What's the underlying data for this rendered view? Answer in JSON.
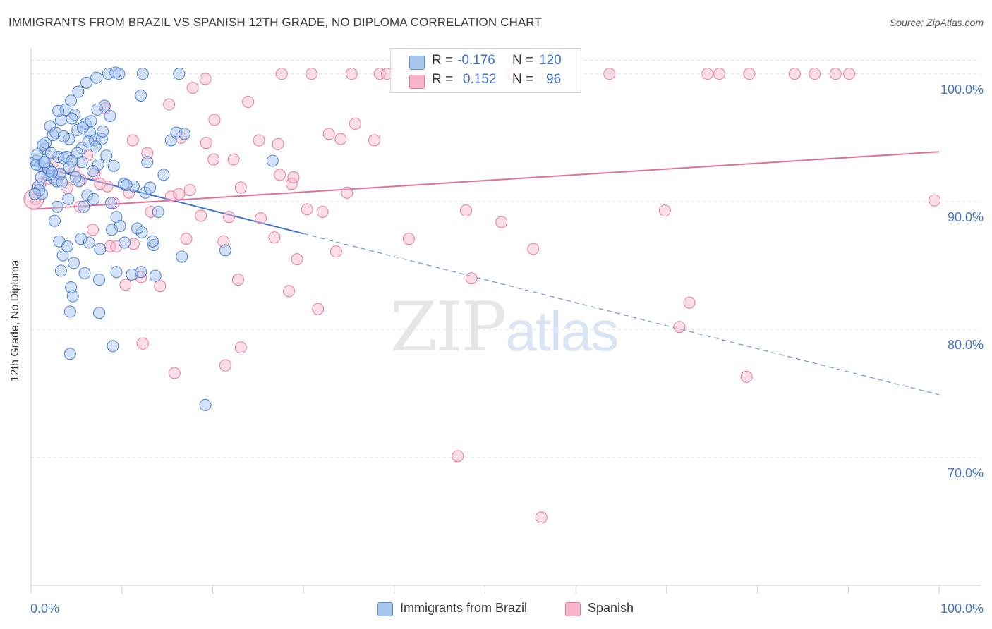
{
  "title": "IMMIGRANTS FROM BRAZIL VS SPANISH 12TH GRADE, NO DIPLOMA CORRELATION CHART",
  "source": "Source: ZipAtlas.com",
  "watermark": {
    "zip": "ZIP",
    "atlas": "atlas"
  },
  "legend": {
    "rows": [
      {
        "r_label": "R =",
        "r_value": "-0.176",
        "n_label": "N =",
        "n_value": "120",
        "color": "#a9c6ef"
      },
      {
        "r_label": "R =",
        "r_value": "0.152",
        "n_label": "N =",
        "n_value": "96",
        "color": "#f7b6c8"
      }
    ]
  },
  "bottom_legend": [
    {
      "label": "Immigrants from Brazil",
      "color": "#a9c6ef"
    },
    {
      "label": "Spanish",
      "color": "#f7b6c8"
    }
  ],
  "colors": {
    "blue": "#5b8fd6",
    "blue_fill": "#a9c6ef",
    "pink": "#e8789c",
    "pink_fill": "#f7b6c8",
    "grid": "#e4e4e4",
    "tick_text": "#4477c8"
  },
  "chart_data": {
    "type": "scatter",
    "title": "IMMIGRANTS FROM BRAZIL VS SPANISH 12TH GRADE, NO DIPLOMA CORRELATION CHART",
    "xlabel": "",
    "ylabel": "12th Grade, No Diploma",
    "xlim": [
      0,
      100
    ],
    "ylim": [
      60,
      101.8
    ],
    "x_tick_labels": [
      "0.0%",
      "100.0%"
    ],
    "y_ticks": [
      70,
      80,
      90,
      100
    ],
    "y_tick_labels": [
      "70.0%",
      "80.0%",
      "90.0%",
      "100.0%"
    ],
    "grid": true,
    "series": [
      {
        "name": "Immigrants from Brazil",
        "r": -0.176,
        "n": 120,
        "trend": {
          "x0": 0,
          "y0": 92.9,
          "x1": 100,
          "y1": 74.9,
          "solid_until_x": 30
        },
        "points": [
          [
            0.5,
            93.2
          ],
          [
            1,
            92.8
          ],
          [
            1.5,
            94.1
          ],
          [
            2,
            92.4
          ],
          [
            2.5,
            91.8
          ],
          [
            3,
            93.5
          ],
          [
            0.8,
            91.2
          ],
          [
            1.2,
            90.6
          ],
          [
            1.8,
            92.1
          ],
          [
            2.2,
            93.8
          ],
          [
            0.6,
            92.9
          ],
          [
            1.4,
            93.1
          ],
          [
            2.8,
            91.6
          ],
          [
            3.2,
            92.2
          ],
          [
            0.9,
            90.9
          ],
          [
            1.6,
            94.6
          ],
          [
            2.4,
            95.2
          ],
          [
            3.6,
            93.4
          ],
          [
            4.2,
            94.9
          ],
          [
            5.1,
            95.6
          ],
          [
            6,
            96.1
          ],
          [
            7.3,
            97.2
          ],
          [
            8.1,
            97.5
          ],
          [
            3.3,
            96.4
          ],
          [
            4.8,
            96.8
          ],
          [
            5.6,
            94.2
          ],
          [
            6.5,
            95.4
          ],
          [
            7,
            94.8
          ],
          [
            7.8,
            94.9
          ],
          [
            3.8,
            97.2
          ],
          [
            4.4,
            97.9
          ],
          [
            5.2,
            98.6
          ],
          [
            6.1,
            99.3
          ],
          [
            7.2,
            99.7
          ],
          [
            8.5,
            100
          ],
          [
            9.7,
            100
          ],
          [
            12.3,
            100
          ],
          [
            16.3,
            100
          ],
          [
            12.1,
            98.3
          ],
          [
            4.1,
            90.2
          ],
          [
            5.3,
            91.6
          ],
          [
            6.2,
            90.5
          ],
          [
            7.4,
            92.9
          ],
          [
            8.3,
            93.6
          ],
          [
            9.1,
            92.8
          ],
          [
            10.2,
            91.4
          ],
          [
            11.3,
            91.2
          ],
          [
            12.6,
            90.7
          ],
          [
            13.1,
            91.1
          ],
          [
            14.6,
            92.1
          ],
          [
            15.4,
            94.8
          ],
          [
            16,
            95.4
          ],
          [
            2.6,
            88.5
          ],
          [
            3.1,
            86.9
          ],
          [
            3.5,
            85.8
          ],
          [
            4,
            86.5
          ],
          [
            4.7,
            85.2
          ],
          [
            5.5,
            87.1
          ],
          [
            6.4,
            86.8
          ],
          [
            7.6,
            86.3
          ],
          [
            8.9,
            87.8
          ],
          [
            10.3,
            86.8
          ],
          [
            12.2,
            87.6
          ],
          [
            13.5,
            86.6
          ],
          [
            3.3,
            84.6
          ],
          [
            4.4,
            83.3
          ],
          [
            5.9,
            84.4
          ],
          [
            7.5,
            83.9
          ],
          [
            9.4,
            84.5
          ],
          [
            11.1,
            84.3
          ],
          [
            12.1,
            84.5
          ],
          [
            13.7,
            84.2
          ],
          [
            16.6,
            85.7
          ],
          [
            21.4,
            86.2
          ],
          [
            26.6,
            93.2
          ],
          [
            4.3,
            81.4
          ],
          [
            4.6,
            82.6
          ],
          [
            7.5,
            81.3
          ],
          [
            9,
            78.7
          ],
          [
            4.3,
            78.1
          ],
          [
            19.2,
            74.1
          ],
          [
            14,
            89.2
          ],
          [
            5.8,
            89.6
          ],
          [
            6.9,
            90.2
          ],
          [
            8.8,
            89.9
          ],
          [
            9.4,
            88.8
          ],
          [
            11.7,
            87.9
          ],
          [
            2.1,
            95.9
          ],
          [
            3,
            97.1
          ],
          [
            6.6,
            96.3
          ],
          [
            7.9,
            95.5
          ],
          [
            8.7,
            96.7
          ],
          [
            10.5,
            91.3
          ],
          [
            5.1,
            93.8
          ],
          [
            5.6,
            93.1
          ],
          [
            6.8,
            92.4
          ],
          [
            4.9,
            91.9
          ],
          [
            3.9,
            93.5
          ],
          [
            1.3,
            94.4
          ],
          [
            2.7,
            95.4
          ],
          [
            3.6,
            95.1
          ],
          [
            4.5,
            96.5
          ],
          [
            1.9,
            92.6
          ],
          [
            1.1,
            91.9
          ],
          [
            0.4,
            90.6
          ],
          [
            0.7,
            93.7
          ],
          [
            1.5,
            93.1
          ],
          [
            2.3,
            92.3
          ],
          [
            3.4,
            91.5
          ],
          [
            4.2,
            92.7
          ],
          [
            5.7,
            95.8
          ],
          [
            6.3,
            94.7
          ],
          [
            7.1,
            94.3
          ],
          [
            9.3,
            100.1
          ],
          [
            13.4,
            86.9
          ],
          [
            9.8,
            88.1
          ],
          [
            12.8,
            93.1
          ],
          [
            16.9,
            95.3
          ],
          [
            4.5,
            93.2
          ],
          [
            2.9,
            89.6
          ]
        ]
      },
      {
        "name": "Spanish",
        "r": 0.152,
        "n": 96,
        "trend": {
          "x0": 0,
          "y0": 89.4,
          "x1": 100,
          "y1": 93.9
        },
        "points": [
          [
            0.5,
            90.2
          ],
          [
            1,
            91.4
          ],
          [
            1.5,
            92.3
          ],
          [
            2,
            91.8
          ],
          [
            2.5,
            93.1
          ],
          [
            3.2,
            92.1
          ],
          [
            4,
            91.1
          ],
          [
            4.8,
            92.4
          ],
          [
            5.5,
            91.7
          ],
          [
            6.2,
            93.6
          ],
          [
            7,
            92.2
          ],
          [
            7.6,
            91.4
          ],
          [
            8.4,
            91.2
          ],
          [
            9.1,
            89.9
          ],
          [
            10.8,
            90.7
          ],
          [
            13.2,
            89.2
          ],
          [
            15.4,
            90.4
          ],
          [
            16.3,
            90.6
          ],
          [
            17.5,
            90.9
          ],
          [
            18.7,
            88.9
          ],
          [
            20.1,
            93.3
          ],
          [
            21.8,
            88.8
          ],
          [
            23.1,
            91.1
          ],
          [
            25.3,
            88.7
          ],
          [
            27.4,
            92.1
          ],
          [
            28.7,
            91.4
          ],
          [
            30.4,
            89.4
          ],
          [
            32.1,
            89.2
          ],
          [
            34.8,
            90.7
          ],
          [
            5.4,
            89.6
          ],
          [
            6.8,
            87.8
          ],
          [
            8.7,
            86.5
          ],
          [
            9.4,
            86.5
          ],
          [
            11.3,
            86.7
          ],
          [
            12.1,
            84.1
          ],
          [
            14.2,
            83.4
          ],
          [
            17.1,
            87.1
          ],
          [
            21.2,
            86.9
          ],
          [
            22.8,
            83.9
          ],
          [
            26.8,
            87.2
          ],
          [
            29.3,
            85.5
          ],
          [
            33.6,
            86.1
          ],
          [
            31.6,
            81.6
          ],
          [
            28.4,
            83
          ],
          [
            10.4,
            83.5
          ],
          [
            12.3,
            78.9
          ],
          [
            15.8,
            76.6
          ],
          [
            21.4,
            77.2
          ],
          [
            23.1,
            78.6
          ],
          [
            35.7,
            96.1
          ],
          [
            32.8,
            95.3
          ],
          [
            34.1,
            94.9
          ],
          [
            37.8,
            94.8
          ],
          [
            41.6,
            87.1
          ],
          [
            47.9,
            89.3
          ],
          [
            48.5,
            84
          ],
          [
            51.8,
            88.4
          ],
          [
            55.3,
            86.3
          ],
          [
            69.8,
            89.3
          ],
          [
            72.5,
            82.1
          ],
          [
            71.4,
            80.2
          ],
          [
            78.8,
            76.3
          ],
          [
            47,
            70.1
          ],
          [
            56.2,
            65.3
          ],
          [
            99.5,
            90.1
          ],
          [
            8.2,
            97.3
          ],
          [
            11.2,
            94.8
          ],
          [
            12.8,
            93.8
          ],
          [
            15.2,
            97.6
          ],
          [
            16.5,
            95
          ],
          [
            17.8,
            98.9
          ],
          [
            19.3,
            94.6
          ],
          [
            20.2,
            96.4
          ],
          [
            22.3,
            93.3
          ],
          [
            23.9,
            97.8
          ],
          [
            25.1,
            94.8
          ],
          [
            27.2,
            94.5
          ],
          [
            28.9,
            91.9
          ],
          [
            19.2,
            99.6
          ],
          [
            27.6,
            100
          ],
          [
            35.3,
            100
          ],
          [
            38.4,
            100
          ],
          [
            39.2,
            100
          ],
          [
            47.3,
            99.7
          ],
          [
            52.7,
            100
          ],
          [
            53.1,
            100
          ],
          [
            55.8,
            100
          ],
          [
            63.7,
            100
          ],
          [
            74.5,
            100
          ],
          [
            75.8,
            100
          ],
          [
            79.1,
            100
          ],
          [
            84.1,
            100
          ],
          [
            86.3,
            100
          ],
          [
            88.6,
            100
          ],
          [
            90.1,
            100
          ],
          [
            30.9,
            100
          ]
        ]
      }
    ]
  }
}
